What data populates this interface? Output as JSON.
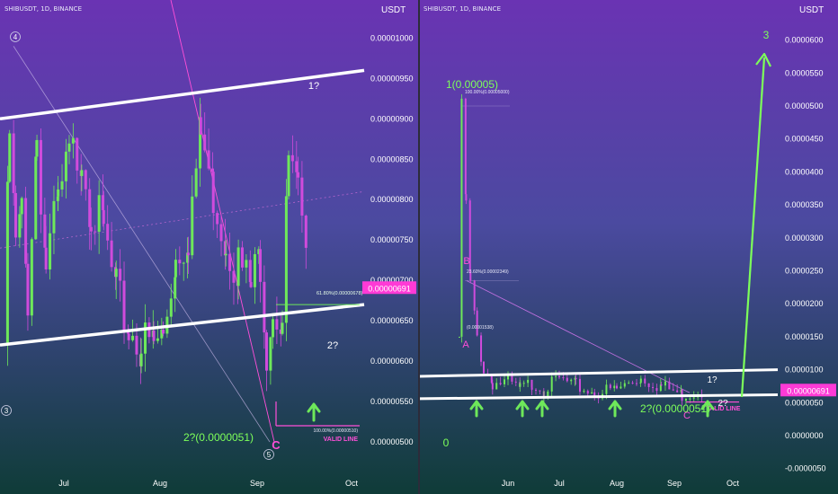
{
  "colors": {
    "bg_top": "#6a33b3",
    "bg_mid": "#4b4aa0",
    "bg_bottom": "#0f3c38",
    "bull": "#6ee85a",
    "bear": "#d04bdc",
    "channel": "#ffffff",
    "label_green": "#7dff5a",
    "label_pink": "#ff4fd8",
    "price_tag": "#ff3ad6",
    "axis_text": "#ffffff"
  },
  "left_panel": {
    "symbol": "SHIBUSDT, 1D, BINANCE",
    "currency": "USDT",
    "price_tag": "0.00000691",
    "fib_label": "61.80%(0.00000678)",
    "fib_label_2": "100.00%(0.00000510)",
    "valid_line": "VALID LINE",
    "annotations": {
      "target_1": "1?",
      "target_2": "2?",
      "target_2_value": "2?(0.0000051)",
      "wave_c": "C",
      "wave_3": "3",
      "wave_4": "4",
      "wave_5": "5"
    }
  },
  "right_panel": {
    "symbol": "SHIBUSDT, 1D, BINANCE",
    "currency": "USDT",
    "price_tag": "0.00000691",
    "fib_labels": [
      "100.00%(0.00005000)",
      "23.60%(0.00002349)",
      "(0.00001538)"
    ],
    "valid_line": "VALID LINE",
    "annotations": {
      "wave_1": "1(0.00005)",
      "wave_0": "0",
      "wave_a": "A",
      "wave_b": "B",
      "wave_c": "C",
      "wave_3": "3",
      "target_1": "1?",
      "target_2": "2?",
      "target_2_value": "2?(0.0000051)"
    }
  },
  "chart_data": [
    {
      "type": "candlestick",
      "title": "SHIBUSDT, 1D, BINANCE",
      "ylabel": "USDT",
      "x_ticks": [
        "Jul",
        "Aug",
        "Sep",
        "Oct"
      ],
      "y_ticks": [
        "0.00000500",
        "0.00000550",
        "0.00000600",
        "0.00000650",
        "0.00000700",
        "0.00000750",
        "0.00000800",
        "0.00000850",
        "0.00000900",
        "0.00000950",
        "0.00001000"
      ],
      "ylim": [
        4.7e-06,
        1.03e-05
      ],
      "last_price": 6.91e-06,
      "channel": {
        "upper": [
          [
            "Jun",
            9e-06
          ],
          [
            "Oct",
            9.6e-06
          ]
        ],
        "lower": [
          [
            "Jun",
            6.2e-06
          ],
          [
            "Oct",
            6.7e-06
          ]
        ]
      },
      "close_path": [
        [
          "Jun 12",
          6.2e-06
        ],
        [
          "Jun 14",
          8.8e-06
        ],
        [
          "Jun 16",
          7.4e-06
        ],
        [
          "Jun 18",
          7.8e-06
        ],
        [
          "Jun 20",
          6.8e-06
        ],
        [
          "Jun 23",
          8.8e-06
        ],
        [
          "Jun 26",
          7.2e-06
        ],
        [
          "Jun 30",
          7.9e-06
        ],
        [
          "Jul 3",
          8.5e-06
        ],
        [
          "Jul 7",
          8.6e-06
        ],
        [
          "Jul 10",
          7.9e-06
        ],
        [
          "Jul 14",
          7.6e-06
        ],
        [
          "Jul 18",
          6.8e-06
        ],
        [
          "Jul 22",
          6.4e-06
        ],
        [
          "Jul 26",
          6.2e-06
        ],
        [
          "Jul 30",
          6.2e-06
        ],
        [
          "Aug 2",
          6.3e-06
        ],
        [
          "Aug 6",
          7.3e-06
        ],
        [
          "Aug 10",
          7.6e-06
        ],
        [
          "Aug 14",
          8.8e-06
        ],
        [
          "Aug 18",
          8.1e-06
        ],
        [
          "Aug 22",
          7.5e-06
        ],
        [
          "Aug 26",
          7.2e-06
        ],
        [
          "Aug 30",
          6.9e-06
        ],
        [
          "Sep 2",
          7.3e-06
        ],
        [
          "Sep 4",
          6.2e-06
        ],
        [
          "Sep 6",
          6.7e-06
        ],
        [
          "Sep 9",
          6.5e-06
        ],
        [
          "Sep 11",
          8.5e-06
        ],
        [
          "Sep 14",
          8e-06
        ],
        [
          "Sep 17",
          6.9e-06
        ]
      ]
    },
    {
      "type": "candlestick",
      "title": "SHIBUSDT, 1D, BINANCE",
      "ylabel": "USDT",
      "x_ticks": [
        "Jun",
        "Jul",
        "Aug",
        "Sep",
        "Oct"
      ],
      "y_ticks": [
        "-0.0000050",
        "0.0000000",
        "0.0000050",
        "0.0000100",
        "0.0000150",
        "0.0000200",
        "0.0000250",
        "0.0000300",
        "0.0000350",
        "0.0000400",
        "0.0000450",
        "0.0000500",
        "0.0000550",
        "0.0000600"
      ],
      "ylim": [
        -5.5e-06,
        6.3e-05
      ],
      "last_price": 6.91e-06,
      "channel": {
        "upper": [
          [
            "May",
            9e-06
          ],
          [
            "Oct",
            1e-05
          ]
        ],
        "lower": [
          [
            "May",
            5.6e-06
          ],
          [
            "Oct",
            6.2e-06
          ]
        ]
      },
      "close_path": [
        [
          "May 10",
          1.5e-05
        ],
        [
          "May 11",
          5e-05
        ],
        [
          "May 13",
          3.5e-05
        ],
        [
          "May 15",
          2.3e-05
        ],
        [
          "May 18",
          1.5e-05
        ],
        [
          "May 21",
          1e-05
        ],
        [
          "May 25",
          8e-06
        ],
        [
          "Jun 1",
          8e-06
        ],
        [
          "Jun 8",
          7e-06
        ],
        [
          "Jun 15",
          8e-06
        ],
        [
          "Jun 22",
          7e-06
        ],
        [
          "Jul 1",
          8.5e-06
        ],
        [
          "Jul 10",
          7.5e-06
        ],
        [
          "Jul 20",
          6.5e-06
        ],
        [
          "Aug 1",
          7e-06
        ],
        [
          "Aug 14",
          8.8e-06
        ],
        [
          "Aug 25",
          7.5e-06
        ],
        [
          "Sep 5",
          6.2e-06
        ],
        [
          "Sep 17",
          6.9e-06
        ]
      ],
      "projection": [
        [
          "Oct 1",
          5.1e-06
        ],
        [
          "Oct 15",
          5.8e-05
        ]
      ]
    }
  ]
}
